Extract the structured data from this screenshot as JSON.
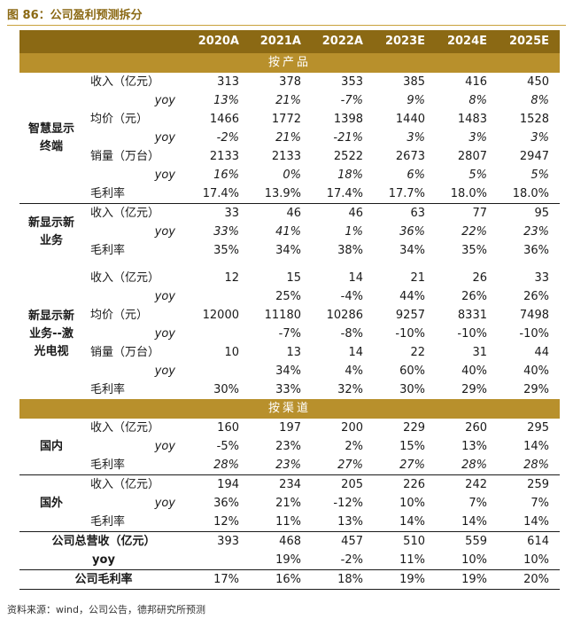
{
  "figure": {
    "title": "图 86：公司盈利预测拆分"
  },
  "table": {
    "years": [
      "2020A",
      "2021A",
      "2022A",
      "2023E",
      "2024E",
      "2025E"
    ],
    "section_product": "按产品",
    "section_channel": "按渠道",
    "groups": {
      "smart": {
        "name_l1": "智慧显示",
        "name_l2": "终端",
        "rows": [
          {
            "label": "收入（亿元）",
            "values": [
              "313",
              "378",
              "353",
              "385",
              "416",
              "450"
            ]
          },
          {
            "label": "yoy",
            "values": [
              "13%",
              "21%",
              "-7%",
              "9%",
              "8%",
              "8%"
            ]
          },
          {
            "label": "均价（元）",
            "values": [
              "1466",
              "1772",
              "1398",
              "1440",
              "1483",
              "1528"
            ]
          },
          {
            "label": "yoy",
            "values": [
              "-2%",
              "21%",
              "-21%",
              "3%",
              "3%",
              "3%"
            ]
          },
          {
            "label": "销量（万台）",
            "values": [
              "2133",
              "2133",
              "2522",
              "2673",
              "2807",
              "2947"
            ]
          },
          {
            "label": "yoy",
            "values": [
              "16%",
              "0%",
              "18%",
              "6%",
              "5%",
              "5%"
            ]
          },
          {
            "label": "毛利率",
            "values": [
              "17.4%",
              "13.9%",
              "17.4%",
              "17.7%",
              "18.0%",
              "18.0%"
            ]
          }
        ]
      },
      "newbiz": {
        "name_l1": "新显示新",
        "name_l2": "业务",
        "rows": [
          {
            "label": "收入（亿元）",
            "values": [
              "33",
              "46",
              "46",
              "63",
              "77",
              "95"
            ]
          },
          {
            "label": "yoy",
            "values": [
              "33%",
              "41%",
              "1%",
              "36%",
              "22%",
              "23%"
            ]
          },
          {
            "label": "毛利率",
            "values": [
              "35%",
              "34%",
              "38%",
              "34%",
              "35%",
              "36%"
            ]
          }
        ]
      },
      "laser": {
        "name_l1": "新显示新",
        "name_l2": "业务--激",
        "name_l3": "光电视",
        "rows": [
          {
            "label": "收入（亿元）",
            "values": [
              "12",
              "15",
              "14",
              "21",
              "26",
              "33"
            ]
          },
          {
            "label": "yoy",
            "values": [
              "",
              "25%",
              "-4%",
              "44%",
              "26%",
              "26%"
            ]
          },
          {
            "label": "均价（元）",
            "values": [
              "12000",
              "11180",
              "10286",
              "9257",
              "8331",
              "7498"
            ]
          },
          {
            "label": "yoy",
            "values": [
              "",
              "-7%",
              "-8%",
              "-10%",
              "-10%",
              "-10%"
            ]
          },
          {
            "label": "销量（万台）",
            "values": [
              "10",
              "13",
              "14",
              "22",
              "31",
              "44"
            ]
          },
          {
            "label": "yoy",
            "values": [
              "",
              "34%",
              "4%",
              "60%",
              "40%",
              "40%"
            ]
          },
          {
            "label": "毛利率",
            "values": [
              "30%",
              "33%",
              "32%",
              "30%",
              "29%",
              "29%"
            ]
          }
        ]
      },
      "domestic": {
        "name": "国内",
        "rows": [
          {
            "label": "收入（亿元）",
            "values": [
              "160",
              "197",
              "200",
              "229",
              "260",
              "295"
            ]
          },
          {
            "label": "yoy",
            "values": [
              "-5%",
              "23%",
              "2%",
              "15%",
              "13%",
              "14%"
            ]
          },
          {
            "label": "毛利率",
            "values": [
              "28%",
              "23%",
              "27%",
              "27%",
              "28%",
              "28%"
            ]
          }
        ]
      },
      "overseas": {
        "name": "国外",
        "rows": [
          {
            "label": "收入（亿元）",
            "values": [
              "194",
              "234",
              "205",
              "226",
              "242",
              "259"
            ]
          },
          {
            "label": "yoy",
            "values": [
              "36%",
              "21%",
              "-12%",
              "10%",
              "7%",
              "7%"
            ]
          },
          {
            "label": "毛利率",
            "values": [
              "12%",
              "11%",
              "13%",
              "14%",
              "14%",
              "14%"
            ]
          }
        ]
      }
    },
    "totals": {
      "revenue": {
        "label": "公司总营收（亿元）",
        "values": [
          "393",
          "468",
          "457",
          "510",
          "559",
          "614"
        ]
      },
      "yoy": {
        "label": "yoy",
        "values": [
          "",
          "19%",
          "-2%",
          "11%",
          "10%",
          "10%"
        ]
      },
      "margin": {
        "label": "公司毛利率",
        "values": [
          "17%",
          "16%",
          "18%",
          "19%",
          "19%",
          "20%"
        ]
      }
    }
  },
  "source": "资料来源：wind，公司公告，德邦研究所预测"
}
